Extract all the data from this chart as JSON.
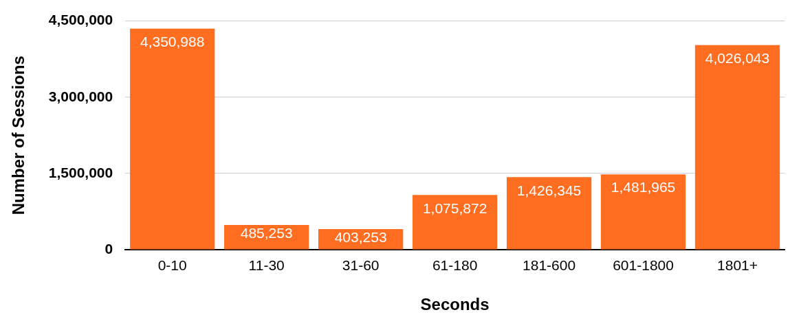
{
  "chart_data": {
    "type": "bar",
    "xlabel": "Seconds",
    "ylabel": "Number of Sessions",
    "categories": [
      "0-10",
      "11-30",
      "31-60",
      "61-180",
      "181-600",
      "601-1800",
      "1801+"
    ],
    "values": [
      4350988,
      485253,
      403253,
      1075872,
      1426345,
      1481965,
      4026043
    ],
    "color": "#ff6d21",
    "ylim": [
      0,
      4500000
    ],
    "yticks": [
      {
        "value": 0,
        "label": "0"
      },
      {
        "value": 1500000,
        "label": "1,500,000"
      },
      {
        "value": 3000000,
        "label": "3,000,000"
      },
      {
        "value": 4500000,
        "label": "4,500,000"
      }
    ],
    "value_labels": [
      "4,350,988",
      "485,253",
      "403,253",
      "1,075,872",
      "1,426,345",
      "1,481,965",
      "4,026,043"
    ],
    "grid": "y",
    "legend": false
  }
}
